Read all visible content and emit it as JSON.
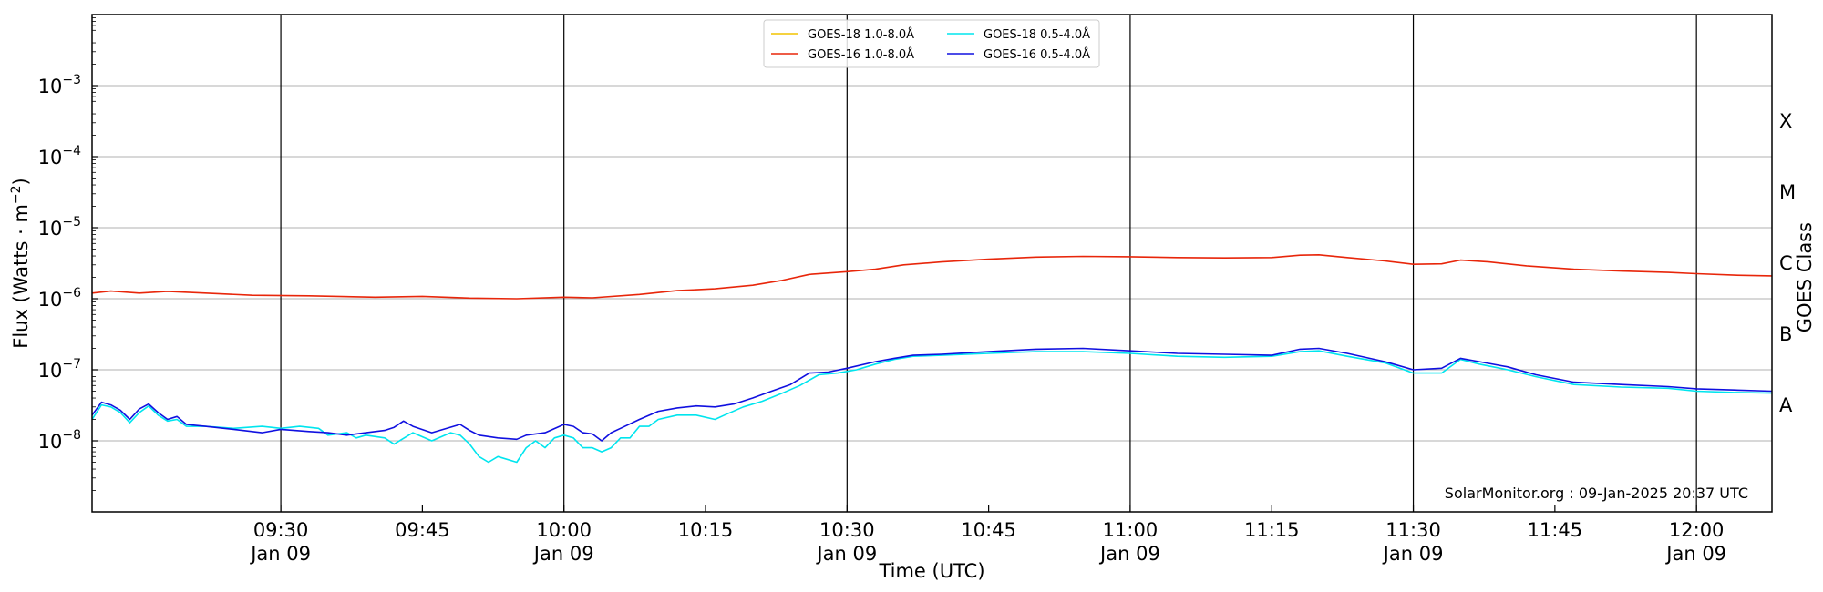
{
  "chart_data": {
    "type": "line",
    "title": "",
    "xlabel": "Time (UTC)",
    "ylabel": "Flux (Watts · m",
    "ylabel_exp": "−2",
    "ylabel_close": ")",
    "y_right_label": "GOES Class",
    "yscale": "log",
    "ylim_exp": [
      -9,
      -2
    ],
    "y_ticks": [
      {
        "exp": -8,
        "base": "10",
        "sup": "−8"
      },
      {
        "exp": -7,
        "base": "10",
        "sup": "−7"
      },
      {
        "exp": -6,
        "base": "10",
        "sup": "−6"
      },
      {
        "exp": -5,
        "base": "10",
        "sup": "−5"
      },
      {
        "exp": -4,
        "base": "10",
        "sup": "−4"
      },
      {
        "exp": -3,
        "base": "10",
        "sup": "−3"
      }
    ],
    "class_ticks": [
      {
        "label": "A",
        "exp": -7.5
      },
      {
        "label": "B",
        "exp": -6.5
      },
      {
        "label": "C",
        "exp": -5.5
      },
      {
        "label": "M",
        "exp": -4.5
      },
      {
        "label": "X",
        "exp": -3.5
      }
    ],
    "x_range_min": [
      "09:10",
      "12:08"
    ],
    "x_ticks": [
      {
        "min": "09:30",
        "line1": "09:30",
        "line2": "Jan 09",
        "vline": true
      },
      {
        "min": "09:45",
        "line1": "09:45",
        "line2": "",
        "vline": false
      },
      {
        "min": "10:00",
        "line1": "10:00",
        "line2": "Jan 09",
        "vline": true
      },
      {
        "min": "10:15",
        "line1": "10:15",
        "line2": "",
        "vline": false
      },
      {
        "min": "10:30",
        "line1": "10:30",
        "line2": "Jan 09",
        "vline": true
      },
      {
        "min": "10:45",
        "line1": "10:45",
        "line2": "",
        "vline": false
      },
      {
        "min": "11:00",
        "line1": "11:00",
        "line2": "Jan 09",
        "vline": true
      },
      {
        "min": "11:15",
        "line1": "11:15",
        "line2": "",
        "vline": false
      },
      {
        "min": "11:30",
        "line1": "11:30",
        "line2": "Jan 09",
        "vline": true
      },
      {
        "min": "11:45",
        "line1": "11:45",
        "line2": "",
        "vline": false
      },
      {
        "min": "12:00",
        "line1": "12:00",
        "line2": "Jan 09",
        "vline": true
      }
    ],
    "grid": "horizontal",
    "legend_position": "top-center",
    "annotation": "SolarMonitor.org : 09-Jan-2025 20:37 UTC",
    "series": [
      {
        "name": "GOES-18 1.0-8.0Å",
        "color": "#f2c400",
        "points": []
      },
      {
        "name": "GOES-16 1.0-8.0Å",
        "color": "#e8260a",
        "points": [
          [
            "09:10",
            1.2e-06
          ],
          [
            "09:12",
            1.28e-06
          ],
          [
            "09:15",
            1.2e-06
          ],
          [
            "09:18",
            1.27e-06
          ],
          [
            "09:22",
            1.2e-06
          ],
          [
            "09:27",
            1.12e-06
          ],
          [
            "09:33",
            1.1e-06
          ],
          [
            "09:40",
            1.05e-06
          ],
          [
            "09:45",
            1.08e-06
          ],
          [
            "09:50",
            1.02e-06
          ],
          [
            "09:55",
            1e-06
          ],
          [
            "10:00",
            1.05e-06
          ],
          [
            "10:03",
            1.03e-06
          ],
          [
            "10:08",
            1.15e-06
          ],
          [
            "10:12",
            1.3e-06
          ],
          [
            "10:16",
            1.38e-06
          ],
          [
            "10:20",
            1.55e-06
          ],
          [
            "10:23",
            1.8e-06
          ],
          [
            "10:26",
            2.2e-06
          ],
          [
            "10:30",
            2.4e-06
          ],
          [
            "10:33",
            2.6e-06
          ],
          [
            "10:36",
            3e-06
          ],
          [
            "10:40",
            3.3e-06
          ],
          [
            "10:45",
            3.6e-06
          ],
          [
            "10:50",
            3.85e-06
          ],
          [
            "10:55",
            3.95e-06
          ],
          [
            "11:00",
            3.9e-06
          ],
          [
            "11:05",
            3.8e-06
          ],
          [
            "11:10",
            3.75e-06
          ],
          [
            "11:15",
            3.8e-06
          ],
          [
            "11:18",
            4.1e-06
          ],
          [
            "11:20",
            4.15e-06
          ],
          [
            "11:23",
            3.8e-06
          ],
          [
            "11:27",
            3.4e-06
          ],
          [
            "11:30",
            3.05e-06
          ],
          [
            "11:33",
            3.1e-06
          ],
          [
            "11:35",
            3.5e-06
          ],
          [
            "11:38",
            3.3e-06
          ],
          [
            "11:42",
            2.9e-06
          ],
          [
            "11:47",
            2.6e-06
          ],
          [
            "11:52",
            2.45e-06
          ],
          [
            "11:57",
            2.35e-06
          ],
          [
            "12:00",
            2.25e-06
          ],
          [
            "12:04",
            2.15e-06
          ],
          [
            "12:08",
            2.1e-06
          ]
        ]
      },
      {
        "name": "GOES-18 0.5-4.0Å",
        "color": "#00e5ee",
        "points": [
          [
            "09:10",
            2e-08
          ],
          [
            "09:11",
            3.2e-08
          ],
          [
            "09:12",
            3e-08
          ],
          [
            "09:13",
            2.5e-08
          ],
          [
            "09:14",
            1.8e-08
          ],
          [
            "09:15",
            2.5e-08
          ],
          [
            "09:16",
            3.1e-08
          ],
          [
            "09:17",
            2.3e-08
          ],
          [
            "09:18",
            1.9e-08
          ],
          [
            "09:19",
            2e-08
          ],
          [
            "09:20",
            1.6e-08
          ],
          [
            "09:22",
            1.6e-08
          ],
          [
            "09:25",
            1.5e-08
          ],
          [
            "09:28",
            1.6e-08
          ],
          [
            "09:30",
            1.5e-08
          ],
          [
            "09:32",
            1.6e-08
          ],
          [
            "09:34",
            1.5e-08
          ],
          [
            "09:35",
            1.2e-08
          ],
          [
            "09:37",
            1.3e-08
          ],
          [
            "09:38",
            1.1e-08
          ],
          [
            "09:39",
            1.2e-08
          ],
          [
            "09:41",
            1.1e-08
          ],
          [
            "09:42",
            9e-09
          ],
          [
            "09:44",
            1.3e-08
          ],
          [
            "09:46",
            1e-08
          ],
          [
            "09:48",
            1.3e-08
          ],
          [
            "09:49",
            1.2e-08
          ],
          [
            "09:50",
            9e-09
          ],
          [
            "09:51",
            6e-09
          ],
          [
            "09:52",
            5e-09
          ],
          [
            "09:53",
            6e-09
          ],
          [
            "09:55",
            5e-09
          ],
          [
            "09:56",
            8e-09
          ],
          [
            "09:57",
            1e-08
          ],
          [
            "09:58",
            8e-09
          ],
          [
            "09:59",
            1.1e-08
          ],
          [
            "10:00",
            1.2e-08
          ],
          [
            "10:01",
            1.1e-08
          ],
          [
            "10:02",
            8e-09
          ],
          [
            "10:03",
            8e-09
          ],
          [
            "10:04",
            7e-09
          ],
          [
            "10:05",
            8e-09
          ],
          [
            "10:06",
            1.1e-08
          ],
          [
            "10:07",
            1.1e-08
          ],
          [
            "10:08",
            1.6e-08
          ],
          [
            "10:09",
            1.6e-08
          ],
          [
            "10:10",
            2e-08
          ],
          [
            "10:12",
            2.3e-08
          ],
          [
            "10:14",
            2.3e-08
          ],
          [
            "10:16",
            2e-08
          ],
          [
            "10:17",
            2.3e-08
          ],
          [
            "10:19",
            3e-08
          ],
          [
            "10:21",
            3.6e-08
          ],
          [
            "10:23",
            4.6e-08
          ],
          [
            "10:25",
            6e-08
          ],
          [
            "10:27",
            8.5e-08
          ],
          [
            "10:29",
            9e-08
          ],
          [
            "10:31",
            1e-07
          ],
          [
            "10:33",
            1.2e-07
          ],
          [
            "10:35",
            1.4e-07
          ],
          [
            "10:37",
            1.55e-07
          ],
          [
            "10:40",
            1.6e-07
          ],
          [
            "10:45",
            1.7e-07
          ],
          [
            "10:50",
            1.8e-07
          ],
          [
            "10:55",
            1.8e-07
          ],
          [
            "11:00",
            1.7e-07
          ],
          [
            "11:05",
            1.55e-07
          ],
          [
            "11:10",
            1.5e-07
          ],
          [
            "11:15",
            1.55e-07
          ],
          [
            "11:18",
            1.8e-07
          ],
          [
            "11:20",
            1.85e-07
          ],
          [
            "11:23",
            1.55e-07
          ],
          [
            "11:27",
            1.25e-07
          ],
          [
            "11:30",
            9e-08
          ],
          [
            "11:33",
            9e-08
          ],
          [
            "11:35",
            1.4e-07
          ],
          [
            "11:37",
            1.2e-07
          ],
          [
            "11:40",
            1e-07
          ],
          [
            "11:43",
            8e-08
          ],
          [
            "11:47",
            6.2e-08
          ],
          [
            "11:52",
            5.7e-08
          ],
          [
            "11:57",
            5.5e-08
          ],
          [
            "12:00",
            5e-08
          ],
          [
            "12:04",
            4.8e-08
          ],
          [
            "12:08",
            4.7e-08
          ]
        ]
      },
      {
        "name": "GOES-16 0.5-4.0Å",
        "color": "#1010e0",
        "points": [
          [
            "09:10",
            2.3e-08
          ],
          [
            "09:11",
            3.5e-08
          ],
          [
            "09:12",
            3.2e-08
          ],
          [
            "09:13",
            2.7e-08
          ],
          [
            "09:14",
            2e-08
          ],
          [
            "09:15",
            2.8e-08
          ],
          [
            "09:16",
            3.3e-08
          ],
          [
            "09:17",
            2.5e-08
          ],
          [
            "09:18",
            2e-08
          ],
          [
            "09:19",
            2.2e-08
          ],
          [
            "09:20",
            1.7e-08
          ],
          [
            "09:22",
            1.6e-08
          ],
          [
            "09:25",
            1.45e-08
          ],
          [
            "09:28",
            1.3e-08
          ],
          [
            "09:30",
            1.45e-08
          ],
          [
            "09:33",
            1.35e-08
          ],
          [
            "09:35",
            1.3e-08
          ],
          [
            "09:37",
            1.2e-08
          ],
          [
            "09:38",
            1.25e-08
          ],
          [
            "09:40",
            1.35e-08
          ],
          [
            "09:41",
            1.4e-08
          ],
          [
            "09:42",
            1.55e-08
          ],
          [
            "09:43",
            1.9e-08
          ],
          [
            "09:44",
            1.6e-08
          ],
          [
            "09:46",
            1.3e-08
          ],
          [
            "09:49",
            1.7e-08
          ],
          [
            "09:50",
            1.4e-08
          ],
          [
            "09:51",
            1.2e-08
          ],
          [
            "09:53",
            1.1e-08
          ],
          [
            "09:55",
            1.05e-08
          ],
          [
            "09:56",
            1.2e-08
          ],
          [
            "09:58",
            1.3e-08
          ],
          [
            "10:00",
            1.7e-08
          ],
          [
            "10:01",
            1.6e-08
          ],
          [
            "10:02",
            1.3e-08
          ],
          [
            "10:03",
            1.25e-08
          ],
          [
            "10:04",
            1e-08
          ],
          [
            "10:05",
            1.3e-08
          ],
          [
            "10:06",
            1.5e-08
          ],
          [
            "10:08",
            2e-08
          ],
          [
            "10:10",
            2.6e-08
          ],
          [
            "10:12",
            2.9e-08
          ],
          [
            "10:14",
            3.1e-08
          ],
          [
            "10:16",
            3e-08
          ],
          [
            "10:18",
            3.3e-08
          ],
          [
            "10:20",
            4e-08
          ],
          [
            "10:22",
            5e-08
          ],
          [
            "10:24",
            6.2e-08
          ],
          [
            "10:26",
            9e-08
          ],
          [
            "10:28",
            9.3e-08
          ],
          [
            "10:30",
            1.05e-07
          ],
          [
            "10:33",
            1.3e-07
          ],
          [
            "10:35",
            1.45e-07
          ],
          [
            "10:37",
            1.6e-07
          ],
          [
            "10:40",
            1.65e-07
          ],
          [
            "10:45",
            1.8e-07
          ],
          [
            "10:50",
            1.95e-07
          ],
          [
            "10:55",
            2e-07
          ],
          [
            "11:00",
            1.85e-07
          ],
          [
            "11:05",
            1.7e-07
          ],
          [
            "11:10",
            1.65e-07
          ],
          [
            "11:15",
            1.6e-07
          ],
          [
            "11:18",
            1.95e-07
          ],
          [
            "11:20",
            2e-07
          ],
          [
            "11:23",
            1.7e-07
          ],
          [
            "11:27",
            1.3e-07
          ],
          [
            "11:30",
            1e-07
          ],
          [
            "11:33",
            1.05e-07
          ],
          [
            "11:35",
            1.45e-07
          ],
          [
            "11:37",
            1.3e-07
          ],
          [
            "11:40",
            1.1e-07
          ],
          [
            "11:43",
            8.5e-08
          ],
          [
            "11:47",
            6.7e-08
          ],
          [
            "11:52",
            6.2e-08
          ],
          [
            "11:57",
            5.8e-08
          ],
          [
            "12:00",
            5.4e-08
          ],
          [
            "12:04",
            5.2e-08
          ],
          [
            "12:08",
            5e-08
          ]
        ]
      }
    ]
  }
}
